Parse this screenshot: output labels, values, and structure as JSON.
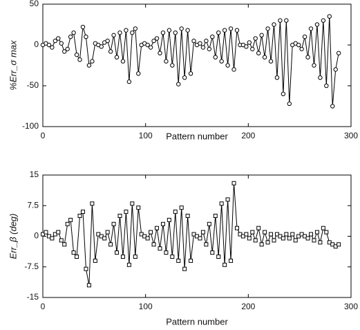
{
  "chart_data": [
    {
      "type": "line",
      "ylabel": "%Err_σ max",
      "xlabel": "Pattern number",
      "xlim": [
        0,
        300
      ],
      "xticks": [
        0,
        100,
        200,
        300
      ],
      "ylim": [
        -100,
        50
      ],
      "yticks": [
        -100,
        -50,
        0,
        50
      ],
      "x": [
        0,
        3,
        6,
        9,
        12,
        15,
        18,
        21,
        24,
        27,
        30,
        33,
        36,
        39,
        42,
        45,
        48,
        51,
        54,
        57,
        60,
        63,
        66,
        69,
        72,
        75,
        78,
        81,
        84,
        87,
        90,
        93,
        96,
        99,
        102,
        105,
        108,
        111,
        114,
        117,
        120,
        123,
        126,
        129,
        132,
        135,
        138,
        141,
        144,
        147,
        150,
        153,
        156,
        159,
        162,
        165,
        168,
        171,
        174,
        177,
        180,
        183,
        186,
        189,
        192,
        195,
        198,
        201,
        204,
        207,
        210,
        213,
        216,
        219,
        222,
        225,
        228,
        231,
        234,
        237,
        240,
        243,
        246,
        249,
        252,
        255,
        258,
        261,
        264,
        267,
        270,
        273,
        276,
        279,
        282,
        285,
        288
      ],
      "series": [
        {
          "color": "#000000",
          "marker": "circle",
          "values": [
            0,
            2,
            0,
            -3,
            5,
            8,
            2,
            -8,
            -5,
            10,
            15,
            -12,
            -18,
            22,
            10,
            -25,
            -20,
            2,
            0,
            -2,
            3,
            5,
            -8,
            12,
            -15,
            15,
            -20,
            18,
            -45,
            15,
            20,
            -35,
            0,
            2,
            0,
            -3,
            5,
            8,
            -10,
            15,
            -20,
            18,
            -25,
            15,
            -48,
            20,
            -40,
            18,
            -35,
            5,
            0,
            2,
            -3,
            5,
            -5,
            10,
            -15,
            15,
            -20,
            18,
            -25,
            20,
            -30,
            18,
            0,
            0,
            -2,
            3,
            -5,
            8,
            -10,
            12,
            -15,
            20,
            -20,
            25,
            -40,
            30,
            -60,
            30,
            -72,
            0,
            2,
            0,
            -5,
            10,
            -15,
            20,
            -25,
            25,
            -40,
            30,
            -50,
            35,
            -75,
            -30,
            -10
          ]
        }
      ]
    },
    {
      "type": "line",
      "ylabel": "Err_β (deg)",
      "xlabel": "Pattern number",
      "xlim": [
        0,
        300
      ],
      "xticks": [
        0,
        100,
        200,
        300
      ],
      "ylim": [
        -15,
        15
      ],
      "yticks": [
        -15,
        -7.5,
        0,
        7.5,
        15
      ],
      "x": [
        0,
        3,
        6,
        9,
        12,
        15,
        18,
        21,
        24,
        27,
        30,
        33,
        36,
        39,
        42,
        45,
        48,
        51,
        54,
        57,
        60,
        63,
        66,
        69,
        72,
        75,
        78,
        81,
        84,
        87,
        90,
        93,
        96,
        99,
        102,
        105,
        108,
        111,
        114,
        117,
        120,
        123,
        126,
        129,
        132,
        135,
        138,
        141,
        144,
        147,
        150,
        153,
        156,
        159,
        162,
        165,
        168,
        171,
        174,
        177,
        180,
        183,
        186,
        189,
        192,
        195,
        198,
        201,
        204,
        207,
        210,
        213,
        216,
        219,
        222,
        225,
        228,
        231,
        234,
        237,
        240,
        243,
        246,
        249,
        252,
        255,
        258,
        261,
        264,
        267,
        270,
        273,
        276,
        279,
        282,
        285,
        288
      ],
      "series": [
        {
          "color": "#000000",
          "marker": "square",
          "values": [
            0.5,
            1,
            0,
            -0.5,
            0.5,
            1,
            -1,
            -2,
            3,
            4,
            -4,
            -5,
            5,
            6,
            -8,
            -12,
            8,
            -6,
            0.5,
            0,
            -0.5,
            1,
            -2,
            3,
            -4,
            5,
            -5,
            6,
            -7,
            8,
            -5,
            7,
            0.5,
            0,
            -0.5,
            1,
            -2,
            2,
            -3,
            3,
            -4,
            4,
            -5,
            6,
            -6,
            7,
            -8,
            5,
            -6,
            0.5,
            0,
            -0.5,
            1,
            -2,
            3,
            -4,
            5,
            -5,
            8,
            -7,
            9,
            -6,
            13,
            2,
            0.5,
            0,
            0.5,
            -0.5,
            1,
            -1,
            2,
            -2,
            1,
            -1.5,
            0.5,
            -1,
            0.5,
            0,
            -0.5,
            0.5,
            -0.5,
            0.5,
            -1,
            0,
            0.5,
            0,
            -0.5,
            0.5,
            -1,
            1,
            -1.5,
            2,
            1,
            -1.5,
            -2,
            -2.5,
            -2
          ]
        }
      ]
    }
  ]
}
